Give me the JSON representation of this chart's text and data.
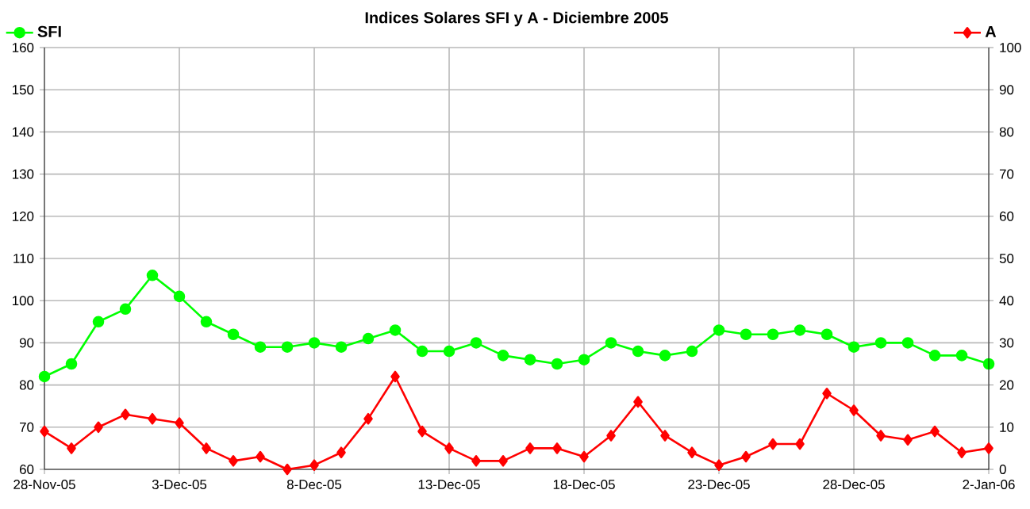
{
  "chart_data": {
    "type": "line",
    "title": "Indices Solares SFI y A - Diciembre 2005",
    "x": [
      "2005-11-28",
      "2005-11-29",
      "2005-11-30",
      "2005-12-01",
      "2005-12-02",
      "2005-12-03",
      "2005-12-04",
      "2005-12-05",
      "2005-12-06",
      "2005-12-07",
      "2005-12-08",
      "2005-12-09",
      "2005-12-10",
      "2005-12-11",
      "2005-12-12",
      "2005-12-13",
      "2005-12-14",
      "2005-12-15",
      "2005-12-16",
      "2005-12-17",
      "2005-12-18",
      "2005-12-19",
      "2005-12-20",
      "2005-12-21",
      "2005-12-22",
      "2005-12-23",
      "2005-12-24",
      "2005-12-25",
      "2005-12-26",
      "2005-12-27",
      "2005-12-28",
      "2005-12-29",
      "2005-12-30",
      "2005-12-31",
      "2006-01-01",
      "2006-01-02"
    ],
    "series": [
      {
        "name": "SFI",
        "color": "#00ff00",
        "marker": "circle",
        "values": [
          82,
          85,
          95,
          98,
          106,
          101,
          95,
          92,
          89,
          89,
          90,
          89,
          91,
          93,
          88,
          88,
          90,
          87,
          86,
          85,
          86,
          90,
          88,
          87,
          88,
          93,
          92,
          92,
          93,
          92,
          89,
          90,
          90,
          87,
          87,
          85
        ]
      },
      {
        "name": "A",
        "color": "#ff0000",
        "marker": "diamond",
        "axis": "y2",
        "values": [
          9,
          5,
          10,
          13,
          12,
          11,
          5,
          2,
          3,
          0,
          1,
          4,
          12,
          22,
          9,
          5,
          2,
          2,
          5,
          5,
          3,
          8,
          16,
          8,
          4,
          1,
          3,
          6,
          6,
          18,
          14,
          8,
          7,
          9,
          4,
          5
        ]
      }
    ],
    "xlim": [
      "2005-11-28",
      "2006-01-02"
    ],
    "xticks": [
      {
        "value": "2005-11-28",
        "label": "28-Nov-05"
      },
      {
        "value": "2005-12-03",
        "label": "3-Dec-05"
      },
      {
        "value": "2005-12-08",
        "label": "8-Dec-05"
      },
      {
        "value": "2005-12-13",
        "label": "13-Dec-05"
      },
      {
        "value": "2005-12-18",
        "label": "18-Dec-05"
      },
      {
        "value": "2005-12-23",
        "label": "23-Dec-05"
      },
      {
        "value": "2005-12-28",
        "label": "28-Dec-05"
      },
      {
        "value": "2006-01-02",
        "label": "2-Jan-06"
      }
    ],
    "ylim": [
      60,
      160
    ],
    "yticks": [
      60,
      70,
      80,
      90,
      100,
      110,
      120,
      130,
      140,
      150,
      160
    ],
    "y2lim": [
      0,
      100
    ],
    "y2ticks": [
      0,
      10,
      20,
      30,
      40,
      50,
      60,
      70,
      80,
      90,
      100
    ],
    "grid": true,
    "legend": "top",
    "line_style": "solid"
  }
}
